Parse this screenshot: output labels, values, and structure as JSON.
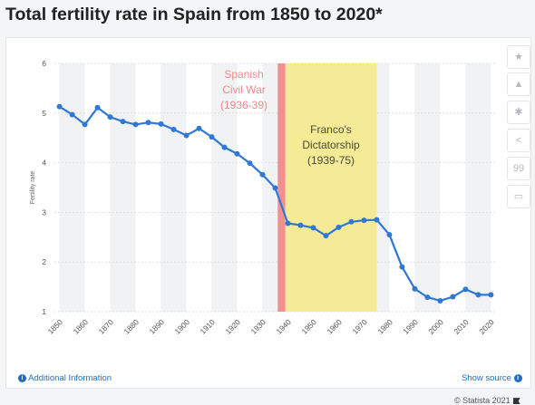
{
  "title": "Total fertility rate in Spain from 1850 to 2020*",
  "chart_data": {
    "type": "line",
    "title": "Total fertility rate in Spain from 1850 to 2020*",
    "xlabel": "",
    "ylabel": "Fertility rate",
    "xlim": [
      1848,
      2022
    ],
    "ylim": [
      1,
      6
    ],
    "yticks": [
      1,
      2,
      3,
      4,
      5,
      6
    ],
    "xticks": [
      1850,
      1860,
      1870,
      1880,
      1890,
      1900,
      1910,
      1920,
      1930,
      1940,
      1950,
      1960,
      1970,
      1980,
      1990,
      2000,
      2010,
      2020
    ],
    "grid": "alternating vertical bands",
    "series": [
      {
        "name": "",
        "color": "#2f78d4",
        "x": [
          1850,
          1855,
          1860,
          1865,
          1870,
          1875,
          1880,
          1885,
          1890,
          1895,
          1900,
          1905,
          1910,
          1915,
          1920,
          1925,
          1930,
          1935,
          1940,
          1945,
          1950,
          1955,
          1960,
          1965,
          1970,
          1975,
          1980,
          1985,
          1990,
          1995,
          2000,
          2005,
          2010,
          2015,
          2020
        ],
        "y": [
          5.13,
          4.97,
          4.77,
          5.11,
          4.92,
          4.83,
          4.77,
          4.81,
          4.78,
          4.67,
          4.55,
          4.69,
          4.52,
          4.31,
          4.18,
          3.99,
          3.76,
          3.49,
          2.78,
          2.74,
          2.69,
          2.53,
          2.7,
          2.81,
          2.84,
          2.85,
          2.55,
          1.9,
          1.46,
          1.29,
          1.22,
          1.3,
          1.45,
          1.34,
          1.34
        ]
      }
    ],
    "annotations": [
      {
        "label_lines": [
          "Spanish",
          "Civil War",
          "(1936-39)"
        ],
        "start": 1936,
        "end": 1939,
        "color": "#f08a8a"
      },
      {
        "label_lines": [
          "Franco's",
          "Dictatorship",
          "(1939-75)"
        ],
        "start": 1939,
        "end": 1975,
        "color": "#f4e98f"
      }
    ]
  },
  "credit": "© Statista 2021",
  "footer": {
    "additional_info": "Additional Information",
    "show_source": "Show source"
  },
  "toolbar": {
    "icons": [
      "star-icon",
      "bell-icon",
      "gear-icon",
      "share-icon",
      "quote-icon",
      "print-icon"
    ],
    "glyphs": [
      "★",
      "▲",
      "✱",
      "<",
      "99",
      "▭"
    ]
  }
}
